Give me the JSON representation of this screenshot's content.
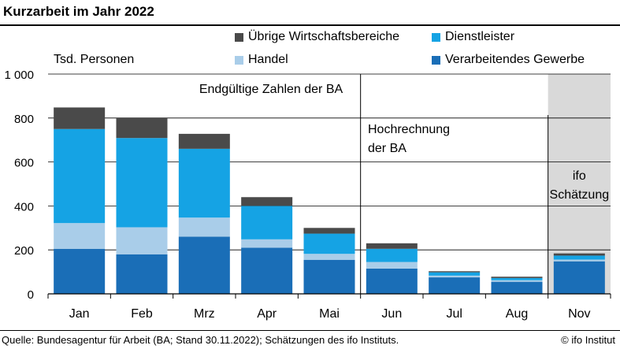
{
  "chart_data": {
    "type": "bar",
    "stacked": true,
    "title": "Kurzarbeit im Jahr 2022",
    "ylabel": "Tsd. Personen",
    "ylim": [
      0,
      1000
    ],
    "yticks": [
      0,
      200,
      400,
      600,
      800,
      1000
    ],
    "ytick_labels": [
      "0",
      "200",
      "400",
      "600",
      "800",
      "1 000"
    ],
    "grid": true,
    "legend_placement": "top",
    "categories": [
      "Jan",
      "Feb",
      "Mrz",
      "Apr",
      "Mai",
      "Jun",
      "Jul",
      "Aug",
      "Nov"
    ],
    "series": [
      {
        "name": "Verarbeitendes Gewerbe",
        "color": "#1a6eb7",
        "values": [
          205,
          180,
          260,
          210,
          155,
          115,
          75,
          55,
          148
        ]
      },
      {
        "name": "Handel",
        "color": "#a9cde9",
        "values": [
          117,
          123,
          87,
          38,
          27,
          30,
          8,
          7,
          8
        ]
      },
      {
        "name": "Dienstleister",
        "color": "#15a3e4",
        "values": [
          428,
          406,
          313,
          152,
          92,
          60,
          15,
          10,
          18
        ]
      },
      {
        "name": "Übrige Wirtschaftsbereiche",
        "color": "#4a4a4a",
        "values": [
          98,
          93,
          68,
          40,
          26,
          25,
          5,
          6,
          10
        ]
      }
    ],
    "legend_order": [
      "Übrige Wirtschaftsbereiche",
      "Dienstleister",
      "Handel",
      "Verarbeitendes Gewerbe"
    ],
    "annotations": [
      {
        "text": "Endgültige Zahlen der BA"
      },
      {
        "text": "Hochrechnung der BA"
      },
      {
        "text": "ifo Schätzung"
      }
    ],
    "shaded_category": "Nov",
    "shade_color": "#d9d9d9"
  },
  "source": "Quelle: Bundesagentur für Arbeit (BA; Stand 30.11.2022); Schätzungen des ifo Instituts.",
  "copyright": "© ifo Institut"
}
